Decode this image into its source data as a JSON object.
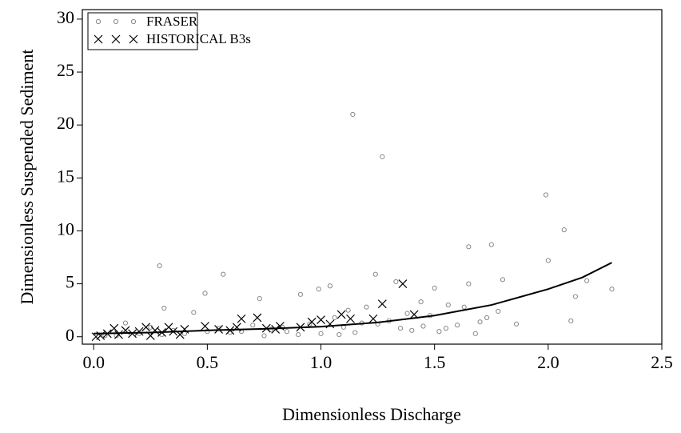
{
  "chart_data": {
    "type": "scatter",
    "xlabel": "Dimensionless Discharge",
    "ylabel": "Dimensionless Suspended Sediment",
    "xlim": [
      -0.05,
      2.5
    ],
    "ylim": [
      -0.7,
      30.9
    ],
    "xticks": [
      {
        "value": 0,
        "label": "0.0"
      },
      0.5,
      {
        "value": 1,
        "label": "1.0"
      },
      1.5,
      {
        "value": 2,
        "label": "2.0"
      },
      2.5
    ],
    "yticks": [
      0,
      5,
      10,
      15,
      20,
      25,
      30
    ],
    "legend": "upper left",
    "series": [
      {
        "name": "FRASER",
        "color": "#888888",
        "marker": "circle",
        "x": [
          0.29,
          0.57,
          1.14,
          1.27,
          1.99,
          2.07,
          2.0,
          1.75,
          1.65,
          1.8,
          2.17,
          2.28,
          2.12,
          2.1,
          1.86,
          1.33,
          1.24,
          1.04,
          0.99,
          0.91,
          0.49,
          0.44,
          0.14,
          0.31,
          0.73,
          1.5,
          1.44,
          1.56,
          1.63,
          1.65,
          1.7,
          1.78,
          1.6,
          1.2,
          1.12,
          1.06,
          0.95,
          0.83,
          0.7,
          0.6,
          0.5,
          0.4,
          0.3,
          0.2,
          0.1,
          0.05,
          1.3,
          1.35,
          1.4,
          1.45,
          1.52,
          1.15,
          1.0,
          0.9,
          0.75,
          0.65,
          0.55,
          0.35,
          0.25,
          1.1,
          1.25,
          1.55,
          1.68,
          1.73,
          1.38,
          1.18,
          0.85,
          0.78,
          1.08,
          1.48
        ],
        "values": [
          6.7,
          5.9,
          21,
          17,
          13.4,
          10.1,
          7.2,
          8.7,
          8.5,
          5.4,
          5.3,
          4.5,
          3.8,
          1.5,
          1.2,
          5.2,
          5.9,
          4.8,
          4.5,
          4.0,
          4.1,
          2.3,
          1.3,
          2.7,
          3.6,
          4.6,
          3.3,
          3.0,
          2.8,
          5.0,
          1.4,
          2.4,
          1.1,
          2.8,
          2.5,
          1.8,
          1.2,
          0.9,
          1.1,
          0.4,
          0.5,
          0.3,
          0.2,
          0.3,
          0.1,
          0.1,
          1.5,
          0.8,
          0.6,
          1.0,
          0.5,
          0.4,
          0.3,
          0.2,
          0.1,
          0.5,
          0.8,
          0.6,
          0.9,
          0.9,
          1.2,
          0.8,
          0.3,
          1.8,
          2.2,
          1.3,
          0.5,
          0.7,
          0.2,
          2.0
        ]
      },
      {
        "name": "HISTORICAL B3s",
        "color": "#000000",
        "marker": "cross",
        "x": [
          0.65,
          0.72,
          1.27,
          1.36,
          1.41,
          1.09,
          1.13,
          1.23,
          1.0,
          0.96,
          0.82,
          0.8,
          0.49,
          0.55,
          0.6,
          0.63,
          0.4,
          0.38,
          0.35,
          0.3,
          0.27,
          0.23,
          0.2,
          0.17,
          0.14,
          0.11,
          0.09,
          0.06,
          0.03,
          0.01,
          0.25,
          0.33,
          1.04,
          0.91,
          0.76
        ],
        "values": [
          1.7,
          1.8,
          3.1,
          5.0,
          2.1,
          2.1,
          1.7,
          1.7,
          1.6,
          1.4,
          1.0,
          0.7,
          1.0,
          0.7,
          0.6,
          0.9,
          0.7,
          0.2,
          0.5,
          0.4,
          0.6,
          0.9,
          0.5,
          0.3,
          0.6,
          0.2,
          0.8,
          0.3,
          0.1,
          0.0,
          0.1,
          0.9,
          1.2,
          0.9,
          0.8
        ]
      }
    ],
    "curve": {
      "color": "#000000",
      "x": [
        0,
        0.25,
        0.5,
        0.75,
        1.0,
        1.25,
        1.5,
        1.75,
        2.0,
        2.15,
        2.28
      ],
      "values": [
        0.3,
        0.4,
        0.6,
        0.75,
        0.95,
        1.35,
        2.0,
        3.0,
        4.5,
        5.6,
        7.0
      ]
    }
  }
}
